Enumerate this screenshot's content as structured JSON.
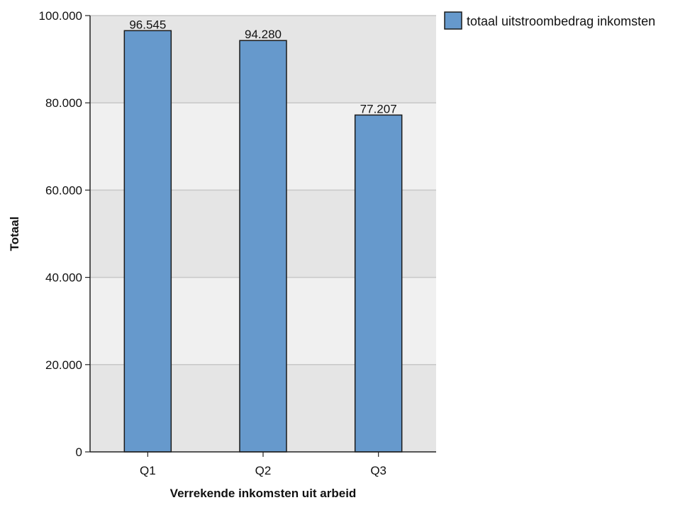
{
  "chart_data": {
    "type": "bar",
    "categories": [
      "Q1",
      "Q2",
      "Q3"
    ],
    "series": [
      {
        "name": "totaal uitstroombedrag inkomsten",
        "values": [
          96545,
          94280,
          77207
        ],
        "labels": [
          "96.545",
          "94.280",
          "77.207"
        ]
      }
    ],
    "xlabel": "Verrekende inkomsten uit arbeid",
    "ylabel": "Totaal",
    "ylim": [
      0,
      100000
    ],
    "yticks": [
      0,
      20000,
      40000,
      60000,
      80000,
      100000
    ],
    "ytick_labels": [
      "0",
      "20.000",
      "40.000",
      "60.000",
      "80.000",
      "100.000"
    ],
    "grid": true,
    "legend_position": "top-right",
    "colors": {
      "bar": "#6699cc",
      "bar_stroke": "#1a1a1a",
      "band_dark": "#e5e5e5",
      "band_light": "#f0f0f0",
      "grid": "#c8c8c8"
    }
  }
}
